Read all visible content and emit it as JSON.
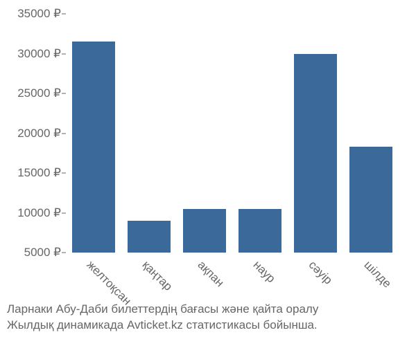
{
  "chart": {
    "type": "bar",
    "background_color": "#ffffff",
    "text_color": "#666666",
    "tick_fontsize": 17,
    "bar_color": "#3b6a9a",
    "bar_width_ratio": 0.78,
    "y": {
      "min": 5000,
      "max": 35000,
      "step": 5000,
      "suffix": " ₽"
    },
    "categories": [
      "желтоқсан",
      "қаңтар",
      "ақпан",
      "наур",
      "сәуір",
      "шілде"
    ],
    "values": [
      31500,
      9000,
      10500,
      10500,
      30000,
      18300
    ]
  },
  "caption": {
    "line1": "Ларнаки Абу-Даби билеттердің бағасы және қайта оралу",
    "line2": "Жылдық динамикада Avticket.kz статистикасы бойынша.",
    "fontsize": 17
  }
}
